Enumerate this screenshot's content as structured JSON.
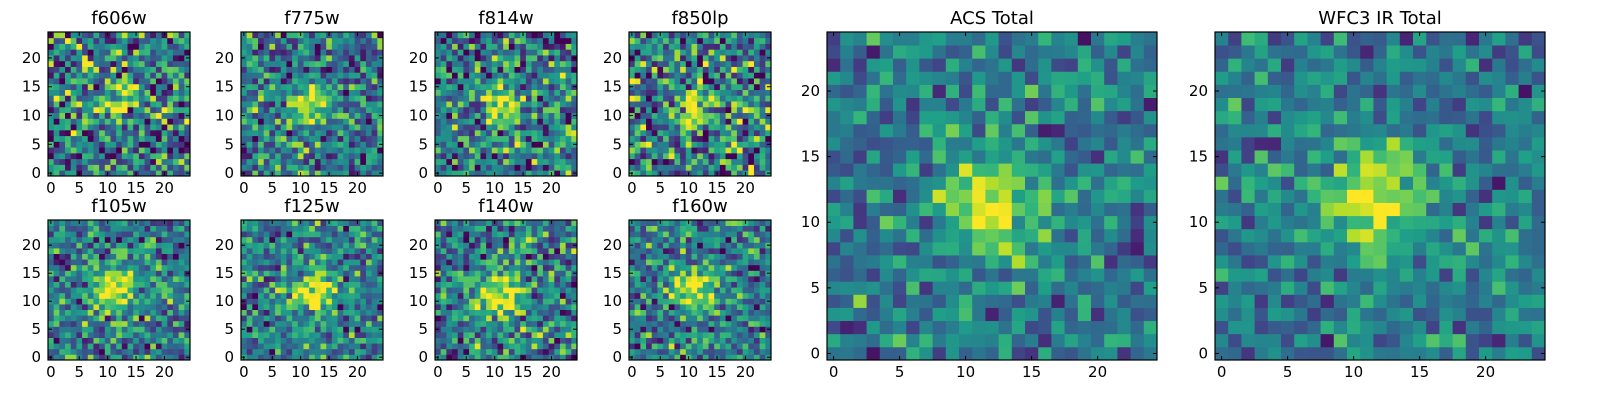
{
  "chart_data": [
    {
      "type": "heatmap",
      "title": "f606w",
      "xticks": [
        0,
        5,
        10,
        15,
        20
      ],
      "yticks": [
        0,
        5,
        10,
        15,
        20
      ],
      "xlim": [
        0,
        25
      ],
      "ylim": [
        0,
        25
      ],
      "grid": false,
      "colormap": "viridis",
      "source_peak": [
        11.5,
        12
      ],
      "source_sigma": 2.2,
      "noise": 0.55,
      "seed": 11
    },
    {
      "type": "heatmap",
      "title": "f775w",
      "xticks": [
        0,
        5,
        10,
        15,
        20
      ],
      "yticks": [
        0,
        5,
        10,
        15,
        20
      ],
      "xlim": [
        0,
        25
      ],
      "ylim": [
        0,
        25
      ],
      "grid": false,
      "colormap": "viridis",
      "source_peak": [
        11.5,
        12
      ],
      "source_sigma": 2.2,
      "noise": 0.45,
      "seed": 23
    },
    {
      "type": "heatmap",
      "title": "f814w",
      "xticks": [
        0,
        5,
        10,
        15,
        20
      ],
      "yticks": [
        0,
        5,
        10,
        15,
        20
      ],
      "xlim": [
        0,
        25
      ],
      "ylim": [
        0,
        25
      ],
      "grid": false,
      "colormap": "viridis",
      "source_peak": [
        11.5,
        12
      ],
      "source_sigma": 2.2,
      "noise": 0.5,
      "seed": 37
    },
    {
      "type": "heatmap",
      "title": "f850lp",
      "xticks": [
        0,
        5,
        10,
        15,
        20
      ],
      "yticks": [
        0,
        5,
        10,
        15,
        20
      ],
      "xlim": [
        0,
        25
      ],
      "ylim": [
        0,
        25
      ],
      "grid": false,
      "colormap": "viridis",
      "source_peak": [
        11.5,
        11.5
      ],
      "source_sigma": 2.2,
      "noise": 0.6,
      "seed": 41
    },
    {
      "type": "heatmap",
      "title": "f105w",
      "xticks": [
        0,
        5,
        10,
        15,
        20
      ],
      "yticks": [
        0,
        5,
        10,
        15,
        20
      ],
      "xlim": [
        0,
        25
      ],
      "ylim": [
        0,
        25
      ],
      "grid": false,
      "colormap": "viridis",
      "source_peak": [
        11,
        12
      ],
      "source_sigma": 2.8,
      "noise": 0.4,
      "seed": 53
    },
    {
      "type": "heatmap",
      "title": "f125w",
      "xticks": [
        0,
        5,
        10,
        15,
        20
      ],
      "yticks": [
        0,
        5,
        10,
        15,
        20
      ],
      "xlim": [
        0,
        25
      ],
      "ylim": [
        0,
        25
      ],
      "grid": false,
      "colormap": "viridis",
      "source_peak": [
        12,
        11.5
      ],
      "source_sigma": 2.8,
      "noise": 0.4,
      "seed": 67
    },
    {
      "type": "heatmap",
      "title": "f140w",
      "xticks": [
        0,
        5,
        10,
        15,
        20
      ],
      "yticks": [
        0,
        5,
        10,
        15,
        20
      ],
      "xlim": [
        0,
        25
      ],
      "ylim": [
        0,
        25
      ],
      "grid": false,
      "colormap": "viridis",
      "source_peak": [
        11,
        11
      ],
      "source_sigma": 3.0,
      "noise": 0.45,
      "seed": 79
    },
    {
      "type": "heatmap",
      "title": "f160w",
      "xticks": [
        0,
        5,
        10,
        15,
        20
      ],
      "yticks": [
        0,
        5,
        10,
        15,
        20
      ],
      "xlim": [
        0,
        25
      ],
      "ylim": [
        0,
        25
      ],
      "grid": false,
      "colormap": "viridis",
      "source_peak": [
        11,
        12
      ],
      "source_sigma": 2.8,
      "noise": 0.4,
      "seed": 97
    },
    {
      "type": "heatmap",
      "title": "ACS Total",
      "xticks": [
        0,
        5,
        10,
        15,
        20
      ],
      "yticks": [
        0,
        5,
        10,
        15,
        20
      ],
      "xlim": [
        0,
        25
      ],
      "ylim": [
        0,
        25
      ],
      "grid": false,
      "colormap": "viridis",
      "source_peak": [
        11.5,
        11.5
      ],
      "source_sigma": 2.6,
      "noise": 0.3,
      "seed": 103
    },
    {
      "type": "heatmap",
      "title": "WFC3 IR Total",
      "xticks": [
        0,
        5,
        10,
        15,
        20
      ],
      "yticks": [
        0,
        5,
        10,
        15,
        20
      ],
      "xlim": [
        0,
        25
      ],
      "ylim": [
        0,
        25
      ],
      "grid": false,
      "colormap": "viridis",
      "source_peak": [
        11.5,
        12
      ],
      "source_sigma": 2.8,
      "noise": 0.28,
      "seed": 131
    }
  ]
}
